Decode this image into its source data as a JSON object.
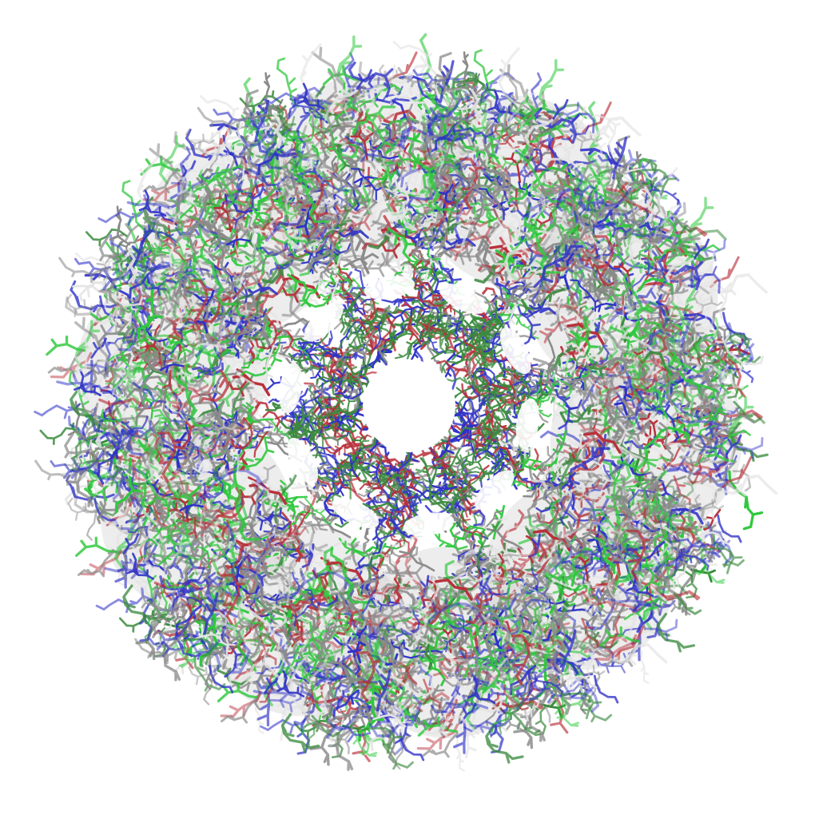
{
  "image": {
    "background_color": "#ffffff",
    "subject": "protein-ring-stick-model",
    "subunit_count": 10,
    "palette": {
      "blue": "#2f32c8",
      "green": "#2ec83c",
      "red": "#b8303a",
      "white": "#e4e4e4",
      "gray": "#8a8a8a",
      "dark_green": "#3a8a3e",
      "dark_blue": "#2a2a8a"
    }
  }
}
